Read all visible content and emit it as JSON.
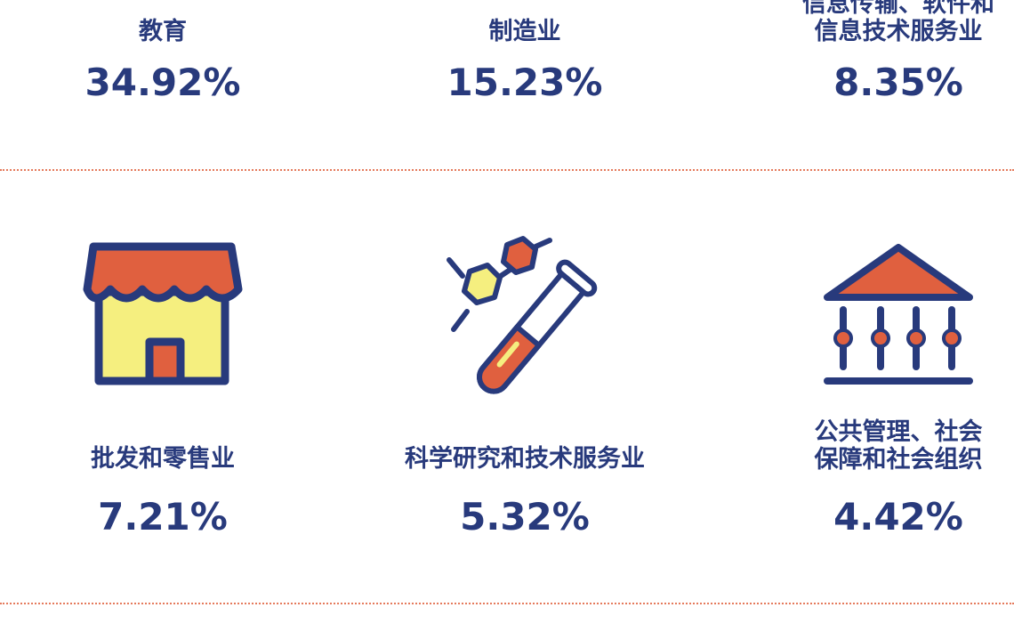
{
  "items": [
    {
      "label": [
        "教育"
      ],
      "value": "34.92%"
    },
    {
      "label": [
        "制造业"
      ],
      "value": "15.23%"
    },
    {
      "label": [
        "信息传输、软件和",
        "信息技术服务业"
      ],
      "value": "8.35%"
    },
    {
      "label": [
        "批发和零售业"
      ],
      "value": "7.21%"
    },
    {
      "label": [
        "科学研究和技术服务业"
      ],
      "value": "5.32%"
    },
    {
      "label": [
        "公共管理、社会",
        "保障和社会组织"
      ],
      "value": "4.42%"
    }
  ]
}
